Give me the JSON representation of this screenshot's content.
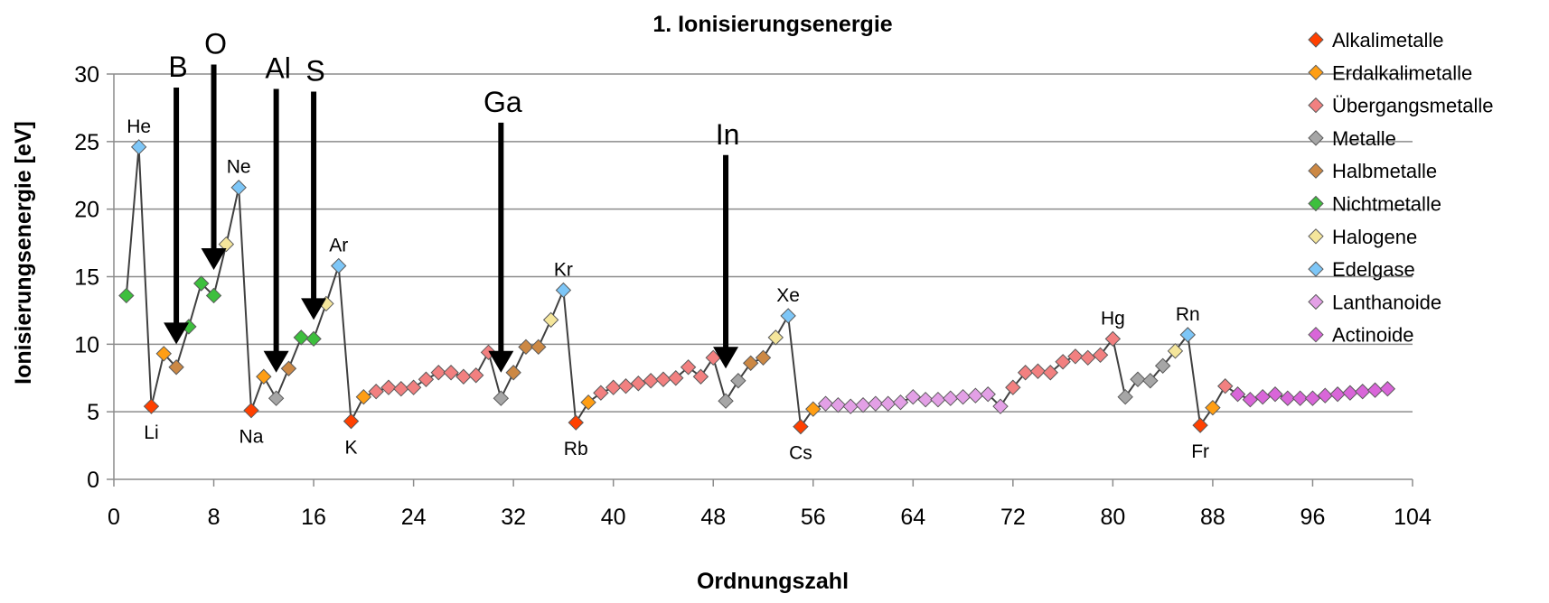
{
  "chart_data": {
    "type": "scatter",
    "title": "1. Ionisierungsenergie",
    "xlabel": "Ordnungszahl",
    "ylabel": "Ionisierungsenergie  [eV]",
    "xlim": [
      0,
      104
    ],
    "ylim": [
      0,
      30
    ],
    "xticks": [
      0,
      8,
      16,
      24,
      32,
      40,
      48,
      56,
      64,
      72,
      80,
      88,
      96,
      104
    ],
    "yticks": [
      0,
      5,
      10,
      15,
      20,
      25,
      30
    ],
    "grid": "horizontal",
    "legend_position": "right",
    "categories": [
      {
        "key": "alk",
        "name": "Alkalimetalle",
        "color": "#ff4000"
      },
      {
        "key": "erd",
        "name": "Erdalkalimetalle",
        "color": "#ff9e14"
      },
      {
        "key": "ueb",
        "name": "Übergangsmetalle",
        "color": "#f28080"
      },
      {
        "key": "met",
        "name": "Metalle",
        "color": "#a6a6a6"
      },
      {
        "key": "hal",
        "name": "Halbmetalle",
        "color": "#cc8844"
      },
      {
        "key": "nicht",
        "name": "Nichtmetalle",
        "color": "#3dbf3d"
      },
      {
        "key": "halo",
        "name": "Halogene",
        "color": "#f5e69b"
      },
      {
        "key": "edel",
        "name": "Edelgase",
        "color": "#7dc6f7"
      },
      {
        "key": "lan",
        "name": "Lanthanoide",
        "color": "#e3a0e6"
      },
      {
        "key": "act",
        "name": "Actinoide",
        "color": "#d966d9"
      }
    ],
    "points": [
      [
        1,
        13.6,
        "nicht"
      ],
      [
        2,
        24.6,
        "edel"
      ],
      [
        3,
        5.4,
        "alk"
      ],
      [
        4,
        9.3,
        "erd"
      ],
      [
        5,
        8.3,
        "hal"
      ],
      [
        6,
        11.3,
        "nicht"
      ],
      [
        7,
        14.5,
        "nicht"
      ],
      [
        8,
        13.6,
        "nicht"
      ],
      [
        9,
        17.4,
        "halo"
      ],
      [
        10,
        21.6,
        "edel"
      ],
      [
        11,
        5.1,
        "alk"
      ],
      [
        12,
        7.6,
        "erd"
      ],
      [
        13,
        6.0,
        "met"
      ],
      [
        14,
        8.2,
        "hal"
      ],
      [
        15,
        10.5,
        "nicht"
      ],
      [
        16,
        10.4,
        "nicht"
      ],
      [
        17,
        13.0,
        "halo"
      ],
      [
        18,
        15.8,
        "edel"
      ],
      [
        19,
        4.3,
        "alk"
      ],
      [
        20,
        6.1,
        "erd"
      ],
      [
        21,
        6.5,
        "ueb"
      ],
      [
        22,
        6.8,
        "ueb"
      ],
      [
        23,
        6.7,
        "ueb"
      ],
      [
        24,
        6.8,
        "ueb"
      ],
      [
        25,
        7.4,
        "ueb"
      ],
      [
        26,
        7.9,
        "ueb"
      ],
      [
        27,
        7.9,
        "ueb"
      ],
      [
        28,
        7.6,
        "ueb"
      ],
      [
        29,
        7.7,
        "ueb"
      ],
      [
        30,
        9.4,
        "ueb"
      ],
      [
        31,
        6.0,
        "met"
      ],
      [
        32,
        7.9,
        "hal"
      ],
      [
        33,
        9.8,
        "hal"
      ],
      [
        34,
        9.8,
        "hal"
      ],
      [
        35,
        11.8,
        "halo"
      ],
      [
        36,
        14.0,
        "edel"
      ],
      [
        37,
        4.2,
        "alk"
      ],
      [
        38,
        5.7,
        "erd"
      ],
      [
        39,
        6.4,
        "ueb"
      ],
      [
        40,
        6.8,
        "ueb"
      ],
      [
        41,
        6.9,
        "ueb"
      ],
      [
        42,
        7.1,
        "ueb"
      ],
      [
        43,
        7.3,
        "ueb"
      ],
      [
        44,
        7.4,
        "ueb"
      ],
      [
        45,
        7.5,
        "ueb"
      ],
      [
        46,
        8.3,
        "ueb"
      ],
      [
        47,
        7.6,
        "ueb"
      ],
      [
        48,
        9.0,
        "ueb"
      ],
      [
        49,
        5.8,
        "met"
      ],
      [
        50,
        7.3,
        "met"
      ],
      [
        51,
        8.6,
        "hal"
      ],
      [
        52,
        9.0,
        "hal"
      ],
      [
        53,
        10.5,
        "halo"
      ],
      [
        54,
        12.1,
        "edel"
      ],
      [
        55,
        3.9,
        "alk"
      ],
      [
        56,
        5.2,
        "erd"
      ],
      [
        57,
        5.6,
        "lan"
      ],
      [
        58,
        5.5,
        "lan"
      ],
      [
        59,
        5.4,
        "lan"
      ],
      [
        60,
        5.5,
        "lan"
      ],
      [
        61,
        5.6,
        "lan"
      ],
      [
        62,
        5.6,
        "lan"
      ],
      [
        63,
        5.7,
        "lan"
      ],
      [
        64,
        6.1,
        "lan"
      ],
      [
        65,
        5.9,
        "lan"
      ],
      [
        66,
        5.9,
        "lan"
      ],
      [
        67,
        6.0,
        "lan"
      ],
      [
        68,
        6.1,
        "lan"
      ],
      [
        69,
        6.2,
        "lan"
      ],
      [
        70,
        6.3,
        "lan"
      ],
      [
        71,
        5.4,
        "lan"
      ],
      [
        72,
        6.8,
        "ueb"
      ],
      [
        73,
        7.9,
        "ueb"
      ],
      [
        74,
        8.0,
        "ueb"
      ],
      [
        75,
        7.9,
        "ueb"
      ],
      [
        76,
        8.7,
        "ueb"
      ],
      [
        77,
        9.1,
        "ueb"
      ],
      [
        78,
        9.0,
        "ueb"
      ],
      [
        79,
        9.2,
        "ueb"
      ],
      [
        80,
        10.4,
        "ueb"
      ],
      [
        81,
        6.1,
        "met"
      ],
      [
        82,
        7.4,
        "met"
      ],
      [
        83,
        7.3,
        "met"
      ],
      [
        84,
        8.4,
        "met"
      ],
      [
        85,
        9.5,
        "halo"
      ],
      [
        86,
        10.7,
        "edel"
      ],
      [
        87,
        4.0,
        "alk"
      ],
      [
        88,
        5.3,
        "erd"
      ],
      [
        89,
        6.9,
        "ueb"
      ],
      [
        90,
        6.3,
        "act"
      ],
      [
        91,
        5.9,
        "act"
      ],
      [
        92,
        6.1,
        "act"
      ],
      [
        93,
        6.3,
        "act"
      ],
      [
        94,
        6.0,
        "act"
      ],
      [
        95,
        6.0,
        "act"
      ],
      [
        96,
        6.0,
        "act"
      ],
      [
        97,
        6.2,
        "act"
      ],
      [
        98,
        6.3,
        "act"
      ],
      [
        99,
        6.4,
        "act"
      ],
      [
        100,
        6.5,
        "act"
      ],
      [
        101,
        6.6,
        "act"
      ],
      [
        102,
        6.7,
        "act"
      ]
    ],
    "point_labels": [
      {
        "text": "He",
        "x": 2,
        "pos": "above"
      },
      {
        "text": "Ne",
        "x": 10,
        "pos": "above"
      },
      {
        "text": "Ar",
        "x": 18,
        "pos": "above"
      },
      {
        "text": "Kr",
        "x": 36,
        "pos": "above"
      },
      {
        "text": "Xe",
        "x": 54,
        "pos": "above"
      },
      {
        "text": "Hg",
        "x": 80,
        "pos": "above"
      },
      {
        "text": "Rn",
        "x": 86,
        "pos": "above"
      },
      {
        "text": "Li",
        "x": 3,
        "pos": "below"
      },
      {
        "text": "Na",
        "x": 11,
        "pos": "below"
      },
      {
        "text": "K",
        "x": 19,
        "pos": "below"
      },
      {
        "text": "Rb",
        "x": 37,
        "pos": "below"
      },
      {
        "text": "Cs",
        "x": 55,
        "pos": "below"
      },
      {
        "text": "Fr",
        "x": 87,
        "pos": "below"
      }
    ],
    "annotations": [
      {
        "text": "B",
        "x": 5,
        "arrow_from": 29.0,
        "arrow_to": 10.0
      },
      {
        "text": "O",
        "x": 8,
        "arrow_from": 30.7,
        "arrow_to": 15.5
      },
      {
        "text": "Al",
        "x": 13,
        "arrow_from": 28.9,
        "arrow_to": 7.9
      },
      {
        "text": "S",
        "x": 16,
        "arrow_from": 28.7,
        "arrow_to": 11.8
      },
      {
        "text": "Ga",
        "x": 31,
        "arrow_from": 26.4,
        "arrow_to": 7.9
      },
      {
        "text": "In",
        "x": 49,
        "arrow_from": 24.0,
        "arrow_to": 8.2
      }
    ]
  }
}
